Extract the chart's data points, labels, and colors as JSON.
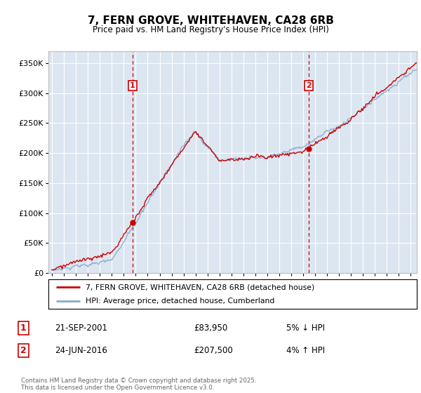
{
  "title": "7, FERN GROVE, WHITEHAVEN, CA28 6RB",
  "subtitle": "Price paid vs. HM Land Registry's House Price Index (HPI)",
  "legend_line1": "7, FERN GROVE, WHITEHAVEN, CA28 6RB (detached house)",
  "legend_line2": "HPI: Average price, detached house, Cumberland",
  "annotation1_label": "1",
  "annotation1_date": "21-SEP-2001",
  "annotation1_price": "£83,950",
  "annotation1_note": "5% ↓ HPI",
  "annotation2_label": "2",
  "annotation2_date": "24-JUN-2016",
  "annotation2_price": "£207,500",
  "annotation2_note": "4% ↑ HPI",
  "footer": "Contains HM Land Registry data © Crown copyright and database right 2025.\nThis data is licensed under the Open Government Licence v3.0.",
  "ylim": [
    0,
    370000
  ],
  "yticks": [
    0,
    50000,
    100000,
    150000,
    200000,
    250000,
    300000,
    350000
  ],
  "ytick_labels": [
    "£0",
    "£50K",
    "£100K",
    "£150K",
    "£200K",
    "£250K",
    "£300K",
    "£350K"
  ],
  "x_start_year": 1995,
  "x_end_year": 2025,
  "sale1_year": 2001.72,
  "sale1_price": 83950,
  "sale2_year": 2016.48,
  "sale2_price": 207500,
  "line_color_property": "#cc0000",
  "line_color_hpi": "#88aacc",
  "background_color": "#dce6f1",
  "plot_bg_color": "#dce6f1",
  "grid_color": "#ffffff",
  "annotation_box_color": "#cc0000"
}
